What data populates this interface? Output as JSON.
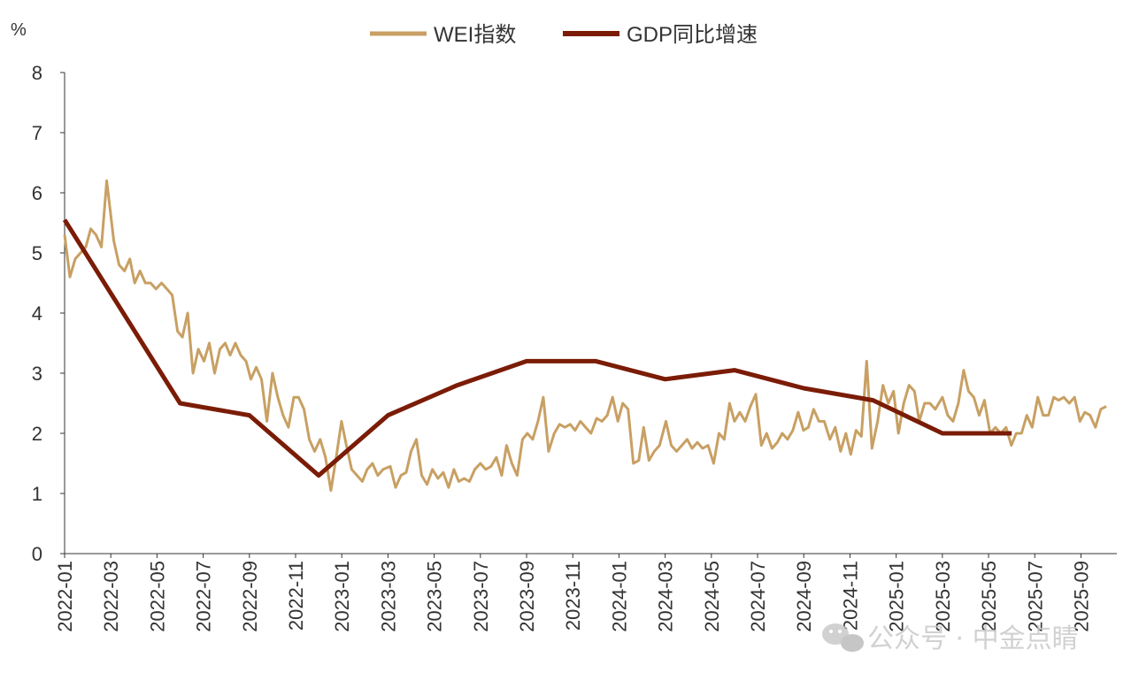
{
  "colors": {
    "wei": "#C8A063",
    "gdp": "#7B1C06",
    "axis": "#333333"
  },
  "watermark": {
    "icon": "wechat-icon",
    "text": "公众号 · 中金点睛"
  },
  "chart_data": {
    "type": "line",
    "unit": "%",
    "ylim": [
      0,
      8
    ],
    "yticks": [
      "0",
      "1",
      "2",
      "3",
      "4",
      "5",
      "6",
      "7",
      "8"
    ],
    "grid": false,
    "legend_position": "top-center",
    "x_range": [
      "2022-01",
      "2025-10"
    ],
    "xticks": [
      "2022-01",
      "2022-03",
      "2022-05",
      "2022-07",
      "2022-09",
      "2022-11",
      "2023-01",
      "2023-03",
      "2023-05",
      "2023-07",
      "2023-09",
      "2023-11",
      "2024-01",
      "2024-03",
      "2024-05",
      "2024-07",
      "2024-09",
      "2024-11",
      "2025-01",
      "2025-03",
      "2025-05",
      "2025-07",
      "2025-09"
    ],
    "series": [
      {
        "name": "WEI指数",
        "frequency": "weekly",
        "start": "2022-01-01",
        "values": [
          5.3,
          4.6,
          4.9,
          5.0,
          5.1,
          5.4,
          5.3,
          5.1,
          6.2,
          5.2,
          4.8,
          4.7,
          4.9,
          4.5,
          4.7,
          4.5,
          4.5,
          4.4,
          4.5,
          4.4,
          4.3,
          3.7,
          3.6,
          4.0,
          3.0,
          3.4,
          3.2,
          3.5,
          3.0,
          3.4,
          3.5,
          3.3,
          3.5,
          3.3,
          3.2,
          2.9,
          3.1,
          2.9,
          2.2,
          3.0,
          2.6,
          2.3,
          2.1,
          2.6,
          2.6,
          2.4,
          1.9,
          1.7,
          1.9,
          1.6,
          1.05,
          1.6,
          2.2,
          1.8,
          1.4,
          1.3,
          1.2,
          1.4,
          1.5,
          1.3,
          1.4,
          1.45,
          1.1,
          1.3,
          1.35,
          1.7,
          1.9,
          1.3,
          1.15,
          1.4,
          1.25,
          1.35,
          1.1,
          1.4,
          1.2,
          1.25,
          1.2,
          1.4,
          1.5,
          1.4,
          1.45,
          1.6,
          1.3,
          1.8,
          1.5,
          1.3,
          1.9,
          2.0,
          1.9,
          2.2,
          2.6,
          1.7,
          2.0,
          2.15,
          2.1,
          2.15,
          2.05,
          2.2,
          2.1,
          2.0,
          2.25,
          2.2,
          2.3,
          2.6,
          2.2,
          2.5,
          2.4,
          1.5,
          1.55,
          2.1,
          1.55,
          1.7,
          1.8,
          2.2,
          1.8,
          1.7,
          1.8,
          1.9,
          1.75,
          1.85,
          1.75,
          1.8,
          1.5,
          2.0,
          1.9,
          2.5,
          2.2,
          2.35,
          2.2,
          2.45,
          2.65,
          1.8,
          2.0,
          1.75,
          1.85,
          2.0,
          1.9,
          2.05,
          2.35,
          2.05,
          2.1,
          2.4,
          2.2,
          2.2,
          1.9,
          2.1,
          1.7,
          2.0,
          1.65,
          2.05,
          1.95,
          3.2,
          1.75,
          2.2,
          2.8,
          2.5,
          2.7,
          2.0,
          2.5,
          2.8,
          2.7,
          2.2,
          2.5,
          2.5,
          2.4,
          2.6,
          2.3,
          2.2,
          2.5,
          3.05,
          2.7,
          2.6,
          2.3,
          2.55,
          2.0,
          2.1,
          2.0,
          2.1,
          1.8,
          2.0,
          2.0,
          2.3,
          2.1,
          2.6,
          2.3,
          2.3,
          2.6,
          2.55,
          2.6,
          2.5,
          2.6,
          2.2,
          2.35,
          2.3,
          2.1,
          2.4,
          2.45
        ]
      },
      {
        "name": "GDP同比增速",
        "frequency": "quarterly",
        "x": [
          "2022-01",
          "2022-06",
          "2022-09",
          "2022-12",
          "2023-03",
          "2023-06",
          "2023-09",
          "2023-12",
          "2024-03",
          "2024-06",
          "2024-09",
          "2024-12",
          "2025-03",
          "2025-06"
        ],
        "values": [
          5.55,
          2.5,
          2.3,
          1.3,
          2.3,
          2.8,
          3.2,
          3.2,
          2.9,
          3.05,
          2.75,
          2.55,
          2.0,
          2.0
        ]
      }
    ]
  }
}
